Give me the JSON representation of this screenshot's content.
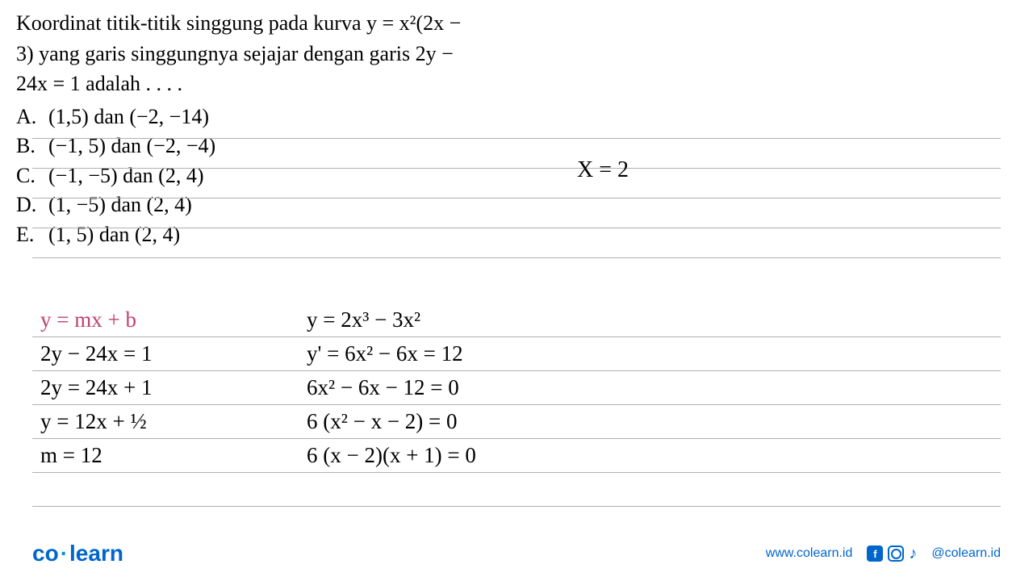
{
  "question": {
    "line1": "Koordinat titik-titik singgung pada kurva y = x²(2x −",
    "line2": "3) yang garis singgungnya sejajar dengan garis 2y −",
    "line3": "24x = 1 adalah . . . ."
  },
  "options": [
    {
      "label": "A.",
      "text": "(1,5) dan (−2, −14)"
    },
    {
      "label": "B.",
      "text": "(−1, 5) dan (−2, −4)"
    },
    {
      "label": "C.",
      "text": "(−1, −5) dan (2, 4)"
    },
    {
      "label": "D.",
      "text": "(1, −5) dan (2, 4)"
    },
    {
      "label": "E.",
      "text": "(1, 5) dan (2, 4)"
    }
  ],
  "right_note": "X = 2",
  "handwriting": {
    "rows": [
      {
        "c1": "y = mx + b",
        "c1_color": "#c04070",
        "c2": "y = 2x³ − 3x²"
      },
      {
        "c1": "2y − 24x = 1",
        "c2": "y' = 6x² − 6x = 12"
      },
      {
        "c1": "2y = 24x + 1",
        "c2": "6x² − 6x − 12 = 0"
      },
      {
        "c1": "y = 12x + ½",
        "c2": "6 (x² − x − 2) = 0"
      },
      {
        "c1": "m = 12",
        "c2": "6 (x − 2)(x + 1) = 0"
      }
    ]
  },
  "ruled_lines_y": [
    171,
    208,
    245,
    282,
    319,
    417,
    459,
    501,
    543,
    585,
    627
  ],
  "colors": {
    "text": "#000000",
    "rule": "#b0b0b0",
    "brand": "#0066cc",
    "pink": "#c04070",
    "background": "#ffffff"
  },
  "footer": {
    "logo_part1": "co",
    "logo_part2": "learn",
    "url": "www.colearn.id",
    "handle": "@colearn.id"
  }
}
